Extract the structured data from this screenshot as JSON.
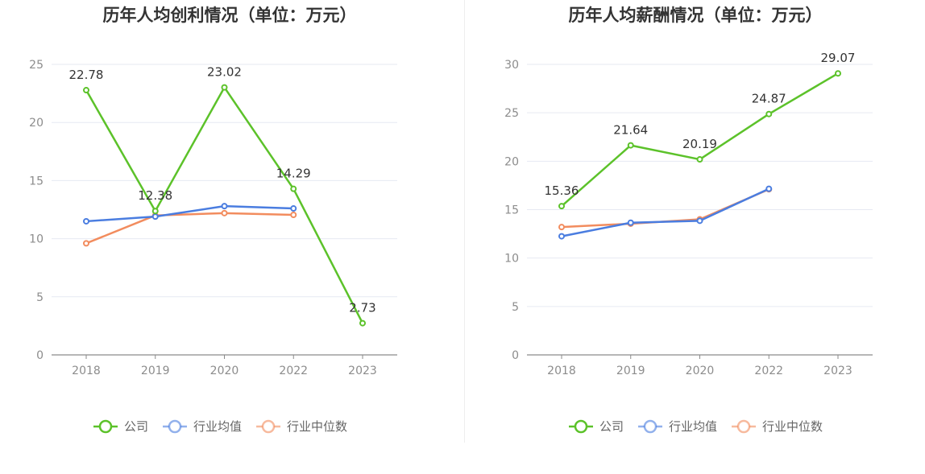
{
  "charts": [
    {
      "chart_data": {
        "type": "line",
        "title": "历年人均创利情况（单位：万元）",
        "categories": [
          "2018",
          "2019",
          "2020",
          "2022",
          "2023"
        ],
        "ylim": [
          0,
          25
        ],
        "yticks": [
          0,
          5,
          10,
          15,
          20,
          25
        ],
        "grid": true,
        "legend_position": "bottom",
        "series": [
          {
            "name": "公司",
            "color": "#5cc22a",
            "values": [
              22.78,
              12.38,
              23.02,
              14.29,
              2.73
            ],
            "labels": [
              "22.78",
              "12.38",
              "23.02",
              "14.29",
              "2.73"
            ]
          },
          {
            "name": "行业均值",
            "color": "#4a7de0",
            "values": [
              11.5,
              11.9,
              12.8,
              12.6,
              null
            ]
          },
          {
            "name": "行业中位数",
            "color": "#f28c5e",
            "values": [
              9.6,
              12.0,
              12.2,
              12.05,
              null
            ]
          }
        ]
      }
    },
    {
      "chart_data": {
        "type": "line",
        "title": "历年人均薪酬情况（单位：万元）",
        "categories": [
          "2018",
          "2019",
          "2020",
          "2022",
          "2023"
        ],
        "ylim": [
          0,
          30
        ],
        "yticks": [
          0,
          5,
          10,
          15,
          20,
          25,
          30
        ],
        "grid": true,
        "legend_position": "bottom",
        "series": [
          {
            "name": "公司",
            "color": "#5cc22a",
            "values": [
              15.36,
              21.64,
              20.19,
              24.87,
              29.07
            ],
            "labels": [
              "15.36",
              "21.64",
              "20.19",
              "24.87",
              "29.07"
            ]
          },
          {
            "name": "行业均值",
            "color": "#4a7de0",
            "values": [
              12.25,
              13.65,
              13.85,
              17.15,
              null
            ]
          },
          {
            "name": "行业中位数",
            "color": "#f28c5e",
            "values": [
              13.2,
              13.55,
              14.0,
              17.1,
              null
            ]
          }
        ]
      }
    }
  ]
}
